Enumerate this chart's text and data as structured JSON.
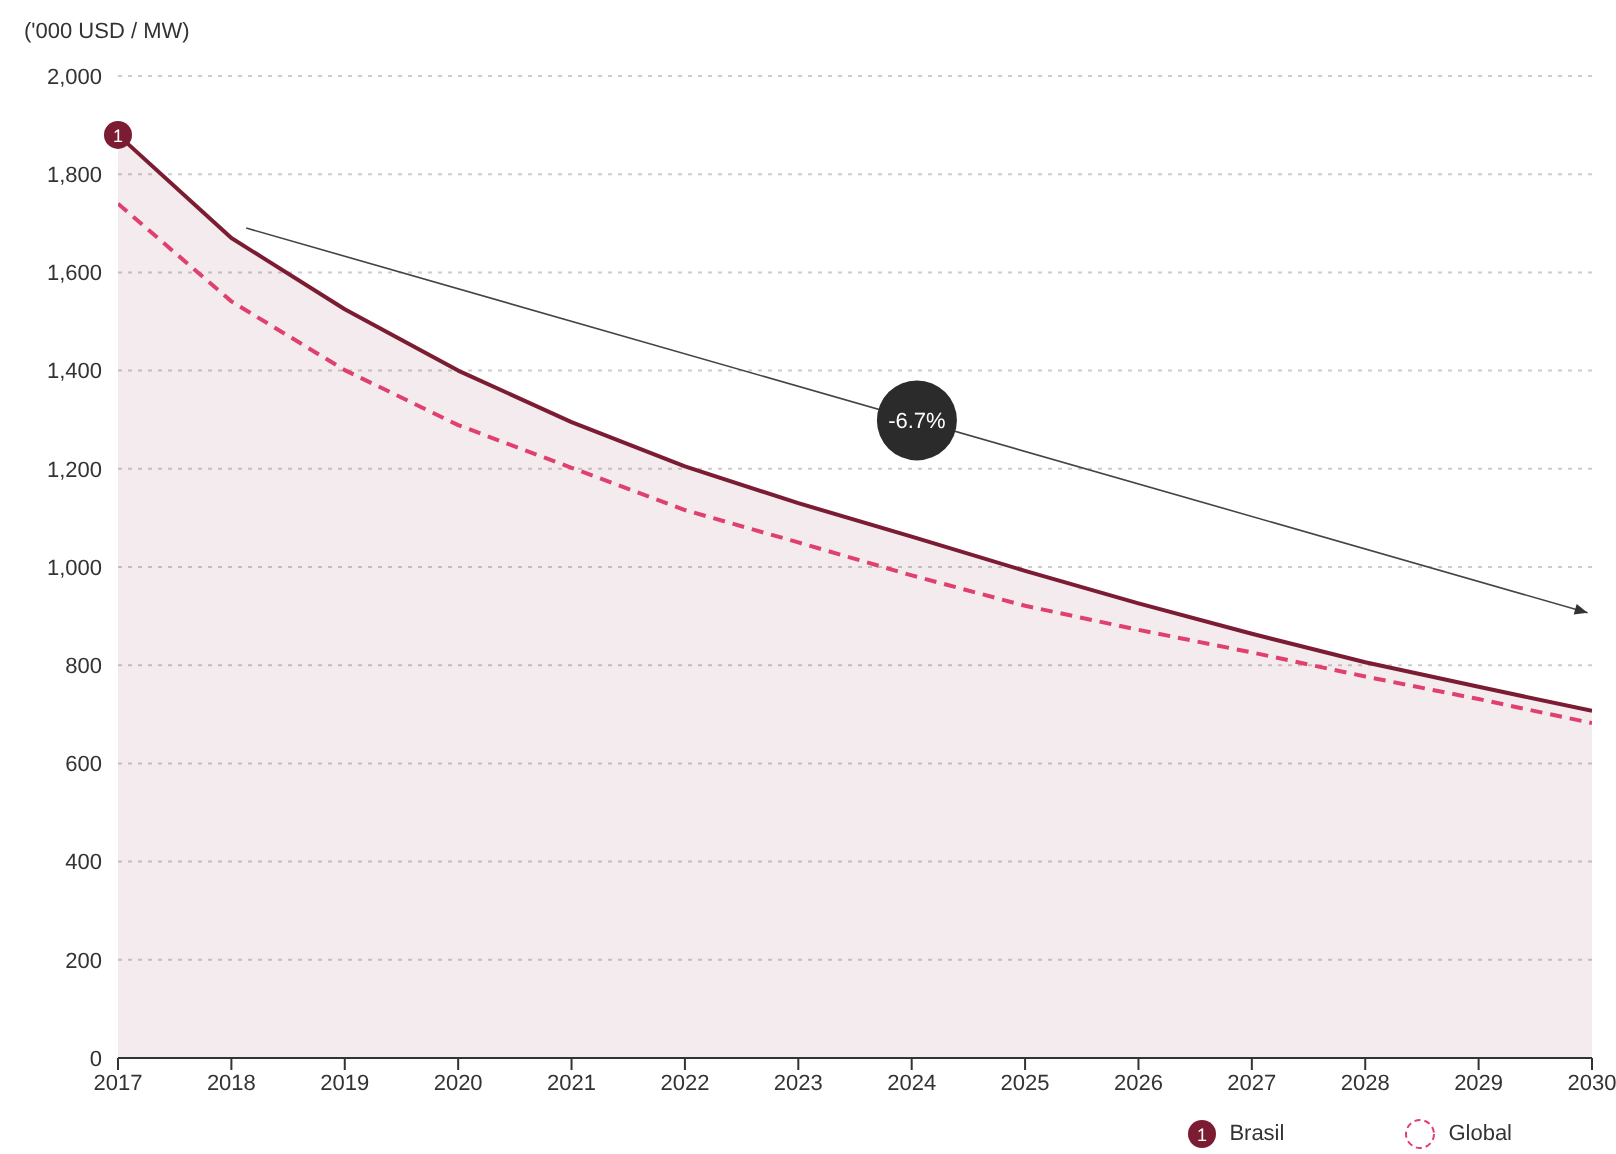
{
  "chart_data": {
    "type": "line",
    "ylabel": "('000 USD / MW)",
    "categories": [
      "2017",
      "2018",
      "2019",
      "2020",
      "2021",
      "2022",
      "2023",
      "2024",
      "2025",
      "2026",
      "2027",
      "2028",
      "2029",
      "2030"
    ],
    "series": [
      {
        "name": "Brasil",
        "type": "area",
        "color": "#7b1c33",
        "line_style": "solid",
        "values": [
          1880,
          1670,
          1525,
          1400,
          1295,
          1205,
          1130,
          1062,
          992,
          926,
          864,
          806,
          756,
          707
        ]
      },
      {
        "name": "Global",
        "type": "line",
        "color": "#e0406e",
        "line_style": "dashed",
        "values": [
          1740,
          1541,
          1401,
          1289,
          1202,
          1116,
          1050,
          983,
          921,
          872,
          826,
          777,
          731,
          682
        ]
      }
    ],
    "ylim": [
      0,
      2000
    ],
    "yticks": [
      {
        "value": 0,
        "label": "0"
      },
      {
        "value": 200,
        "label": "200"
      },
      {
        "value": 400,
        "label": "400"
      },
      {
        "value": 600,
        "label": "600"
      },
      {
        "value": 800,
        "label": "800"
      },
      {
        "value": 1000,
        "label": "1,000"
      },
      {
        "value": 1200,
        "label": "1,200"
      },
      {
        "value": 1400,
        "label": "1,400"
      },
      {
        "value": 1600,
        "label": "1,600"
      },
      {
        "value": 1800,
        "label": "1,800"
      },
      {
        "value": 2000,
        "label": "2,000"
      }
    ],
    "grid": "y",
    "legend": "bottom right",
    "marker": "none",
    "annotations": [
      {
        "text": "1",
        "x": "2017",
        "y": 1880
      },
      "-6.7%"
    ]
  }
}
